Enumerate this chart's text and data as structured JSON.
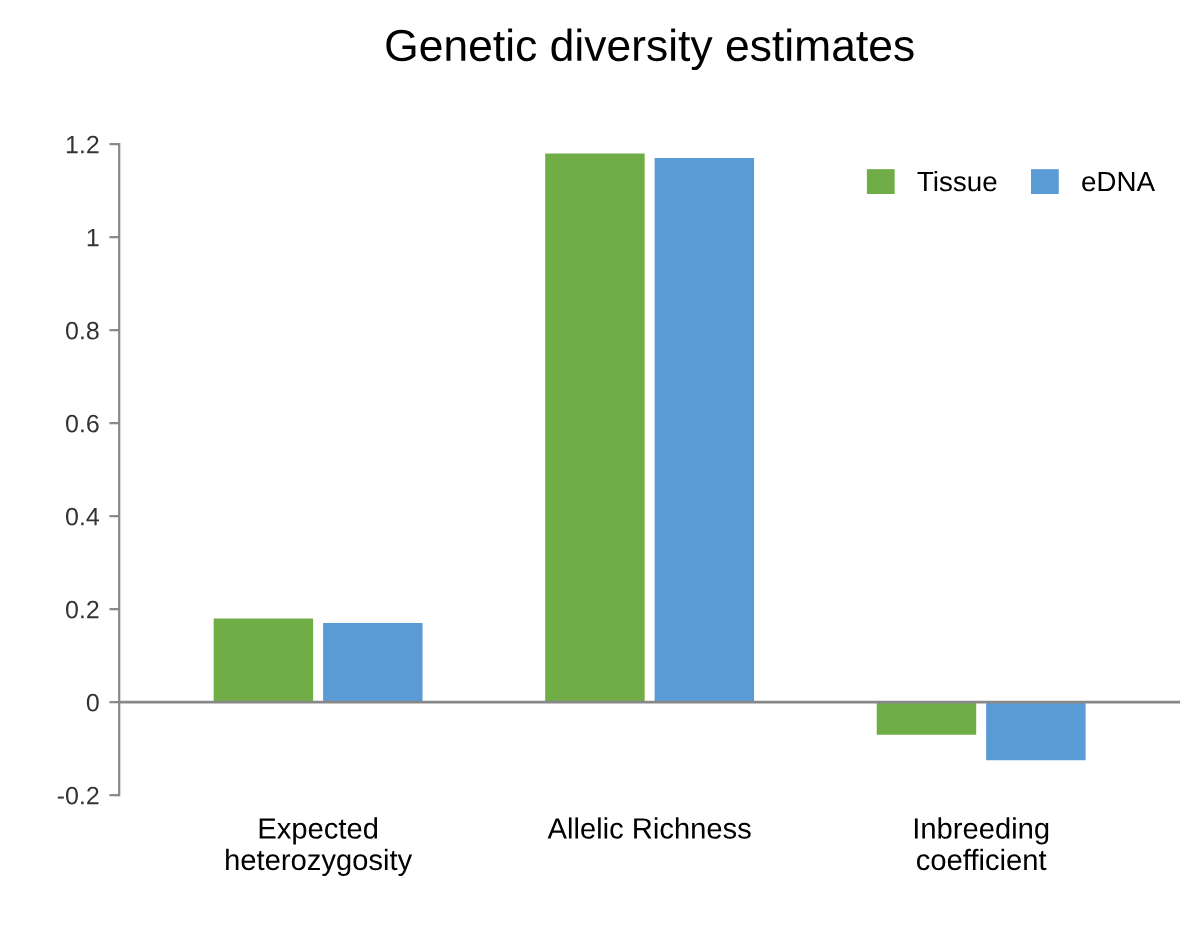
{
  "chart_data": {
    "type": "bar",
    "title": "Genetic diversity estimates",
    "categories": [
      "Expected\nheterozygosity",
      "Allelic Richness",
      "Inbreeding\ncoefficient"
    ],
    "series": [
      {
        "name": "Tissue",
        "color": "#70ad47",
        "values": [
          0.18,
          1.18,
          -0.07
        ]
      },
      {
        "name": "eDNA",
        "color": "#5b9bd5",
        "values": [
          0.17,
          1.17,
          -0.125
        ]
      }
    ],
    "ylim": [
      -0.2,
      1.2
    ],
    "yticks": [
      -0.2,
      0,
      0.2,
      0.4,
      0.6,
      0.8,
      1,
      1.2
    ],
    "legend": "top right"
  }
}
